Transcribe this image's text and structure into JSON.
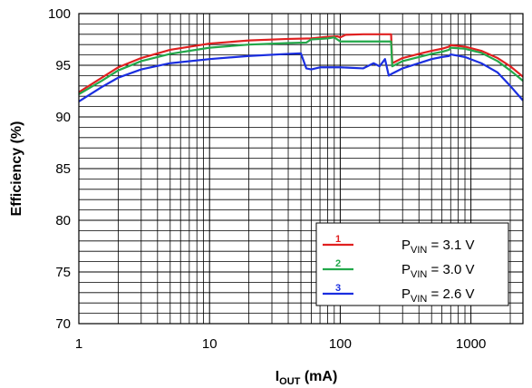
{
  "chart_data": {
    "type": "line",
    "xlabel": {
      "main": "I",
      "sub": "OUT",
      "unit": " (mA)"
    },
    "ylabel": "Efficiency (%)",
    "xscale": "log",
    "xlim": [
      1,
      2500
    ],
    "ylim": [
      70,
      100
    ],
    "xticks": [
      1,
      10,
      100,
      1000
    ],
    "xtick_labels": [
      "1",
      "10",
      "100",
      "1000"
    ],
    "yticks": [
      70,
      75,
      80,
      85,
      90,
      95,
      100
    ],
    "ytick_labels": [
      "70",
      "75",
      "80",
      "85",
      "90",
      "95",
      "100"
    ],
    "grid": true,
    "legend_position": "bottom-right",
    "series": [
      {
        "name": "P_VIN = 3.1 V",
        "marker": "1",
        "label_main": "P",
        "label_sub": "VIN",
        "label_rest": " = 3.1 V",
        "color": "#e02020",
        "points": [
          [
            1,
            92.4
          ],
          [
            1.5,
            93.8
          ],
          [
            2,
            94.8
          ],
          [
            3,
            95.7
          ],
          [
            5,
            96.5
          ],
          [
            10,
            97.1
          ],
          [
            20,
            97.4
          ],
          [
            40,
            97.55
          ],
          [
            60,
            97.6
          ],
          [
            80,
            97.75
          ],
          [
            95,
            97.8
          ],
          [
            100,
            97.7
          ],
          [
            110,
            97.95
          ],
          [
            150,
            98.0
          ],
          [
            200,
            98.0
          ],
          [
            245,
            98.0
          ],
          [
            250,
            95.2
          ],
          [
            300,
            95.7
          ],
          [
            400,
            96.1
          ],
          [
            500,
            96.4
          ],
          [
            600,
            96.6
          ],
          [
            680,
            96.8
          ],
          [
            700,
            96.95
          ],
          [
            900,
            96.8
          ],
          [
            1200,
            96.4
          ],
          [
            1600,
            95.7
          ],
          [
            2000,
            94.9
          ],
          [
            2500,
            93.9
          ]
        ]
      },
      {
        "name": "P_VIN = 3.0 V",
        "marker": "2",
        "label_main": "P",
        "label_sub": "VIN",
        "label_rest": " = 3.0 V",
        "color": "#22a84a",
        "points": [
          [
            1,
            92.2
          ],
          [
            1.5,
            93.5
          ],
          [
            2,
            94.5
          ],
          [
            3,
            95.4
          ],
          [
            5,
            96.1
          ],
          [
            10,
            96.7
          ],
          [
            20,
            97.0
          ],
          [
            40,
            97.15
          ],
          [
            55,
            97.2
          ],
          [
            60,
            97.5
          ],
          [
            80,
            97.6
          ],
          [
            90,
            97.7
          ],
          [
            100,
            97.3
          ],
          [
            150,
            97.3
          ],
          [
            200,
            97.3
          ],
          [
            245,
            97.3
          ],
          [
            250,
            94.9
          ],
          [
            300,
            95.4
          ],
          [
            400,
            95.8
          ],
          [
            500,
            96.1
          ],
          [
            600,
            96.3
          ],
          [
            680,
            96.5
          ],
          [
            700,
            96.7
          ],
          [
            900,
            96.6
          ],
          [
            1200,
            96.2
          ],
          [
            1600,
            95.4
          ],
          [
            2000,
            94.5
          ],
          [
            2500,
            93.5
          ]
        ]
      },
      {
        "name": "P_VIN = 2.6 V",
        "marker": "3",
        "label_main": "P",
        "label_sub": "VIN",
        "label_rest": " = 2.6 V",
        "color": "#1a2ee0",
        "points": [
          [
            1,
            91.5
          ],
          [
            1.5,
            92.9
          ],
          [
            2,
            93.8
          ],
          [
            3,
            94.6
          ],
          [
            5,
            95.2
          ],
          [
            10,
            95.6
          ],
          [
            20,
            95.9
          ],
          [
            40,
            96.1
          ],
          [
            50,
            96.15
          ],
          [
            55,
            94.7
          ],
          [
            60,
            94.6
          ],
          [
            70,
            94.8
          ],
          [
            100,
            94.8
          ],
          [
            150,
            94.7
          ],
          [
            180,
            95.2
          ],
          [
            200,
            94.9
          ],
          [
            220,
            95.6
          ],
          [
            235,
            94.0
          ],
          [
            250,
            94.2
          ],
          [
            300,
            94.7
          ],
          [
            400,
            95.2
          ],
          [
            500,
            95.6
          ],
          [
            600,
            95.8
          ],
          [
            680,
            95.9
          ],
          [
            700,
            96.05
          ],
          [
            900,
            95.8
          ],
          [
            1200,
            95.2
          ],
          [
            1600,
            94.3
          ],
          [
            2000,
            93.0
          ],
          [
            2500,
            91.6
          ]
        ]
      }
    ]
  }
}
